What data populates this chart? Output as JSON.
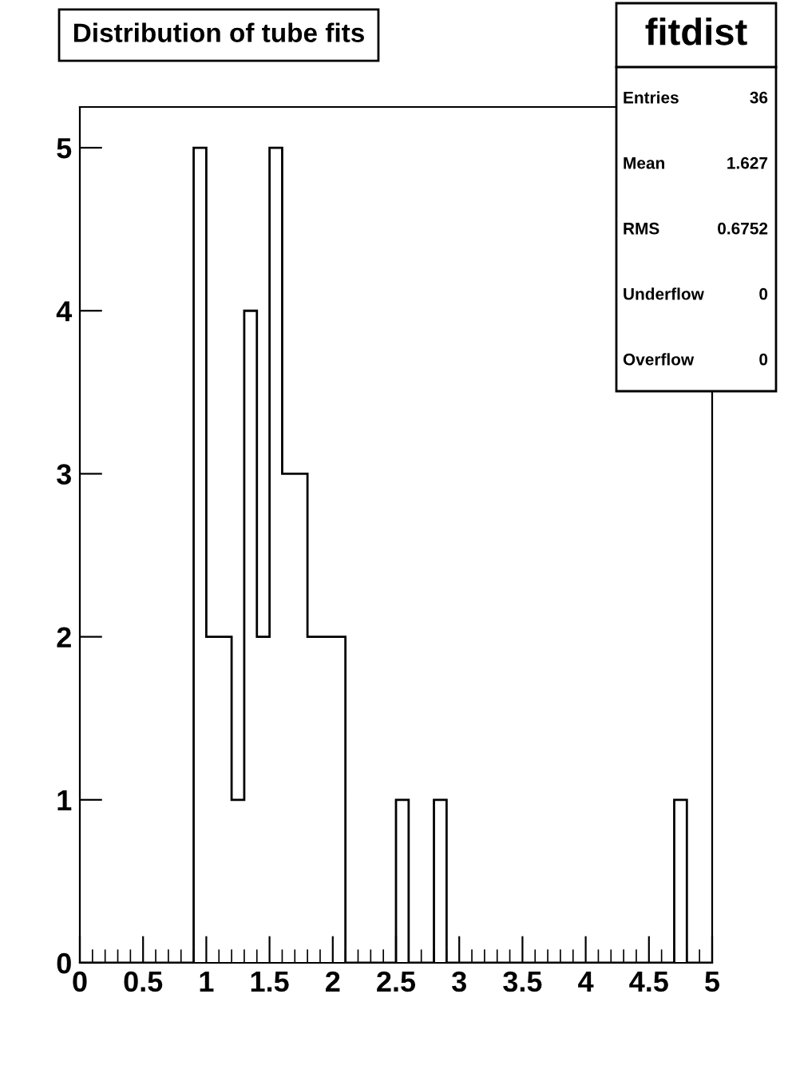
{
  "chart_data": {
    "type": "histogram",
    "title": "Distribution of tube fits",
    "bins": [
      0,
      0.1,
      0.2,
      0.3,
      0.4,
      0.5,
      0.6,
      0.7,
      0.8,
      0.9,
      1.0,
      1.1,
      1.2,
      1.3,
      1.4,
      1.5,
      1.6,
      1.7,
      1.8,
      1.9,
      2.0,
      2.1,
      2.2,
      2.3,
      2.4,
      2.5,
      2.6,
      2.7,
      2.8,
      2.9,
      3.0,
      3.1,
      3.2,
      3.3,
      3.4,
      3.5,
      3.6,
      3.7,
      3.8,
      3.9,
      4.0,
      4.1,
      4.2,
      4.3,
      4.4,
      4.5,
      4.6,
      4.7,
      4.8,
      4.9,
      5.0
    ],
    "values": [
      0,
      0,
      0,
      0,
      0,
      0,
      0,
      0,
      0,
      5,
      2,
      2,
      1,
      4,
      2,
      5,
      3,
      3,
      2,
      2,
      2,
      0,
      0,
      0,
      0,
      1,
      0,
      0,
      1,
      0,
      0,
      0,
      0,
      0,
      0,
      0,
      0,
      0,
      0,
      0,
      0,
      0,
      0,
      0,
      0,
      0,
      0,
      1,
      0,
      0
    ],
    "color": "#000000",
    "xlim": [
      0,
      5
    ],
    "xticks": [
      0,
      {
        "value": 0.5,
        "label": "0.5"
      },
      1,
      {
        "value": 1.5,
        "label": "1.5"
      },
      2,
      {
        "value": 2.5,
        "label": "2.5"
      },
      3,
      {
        "value": 3.5,
        "label": "3.5"
      },
      4,
      {
        "value": 4.5,
        "label": "4.5"
      },
      5
    ],
    "ylim": [
      0,
      5.25
    ],
    "yticks": [
      0,
      1,
      2,
      3,
      4,
      5
    ],
    "grid": false,
    "legend": false,
    "annotations": [
      "fitdist",
      "Entries",
      "36",
      "Mean",
      "1.627",
      "RMS",
      "0.6752",
      "Underflow",
      "0",
      "Overflow",
      "0"
    ]
  }
}
